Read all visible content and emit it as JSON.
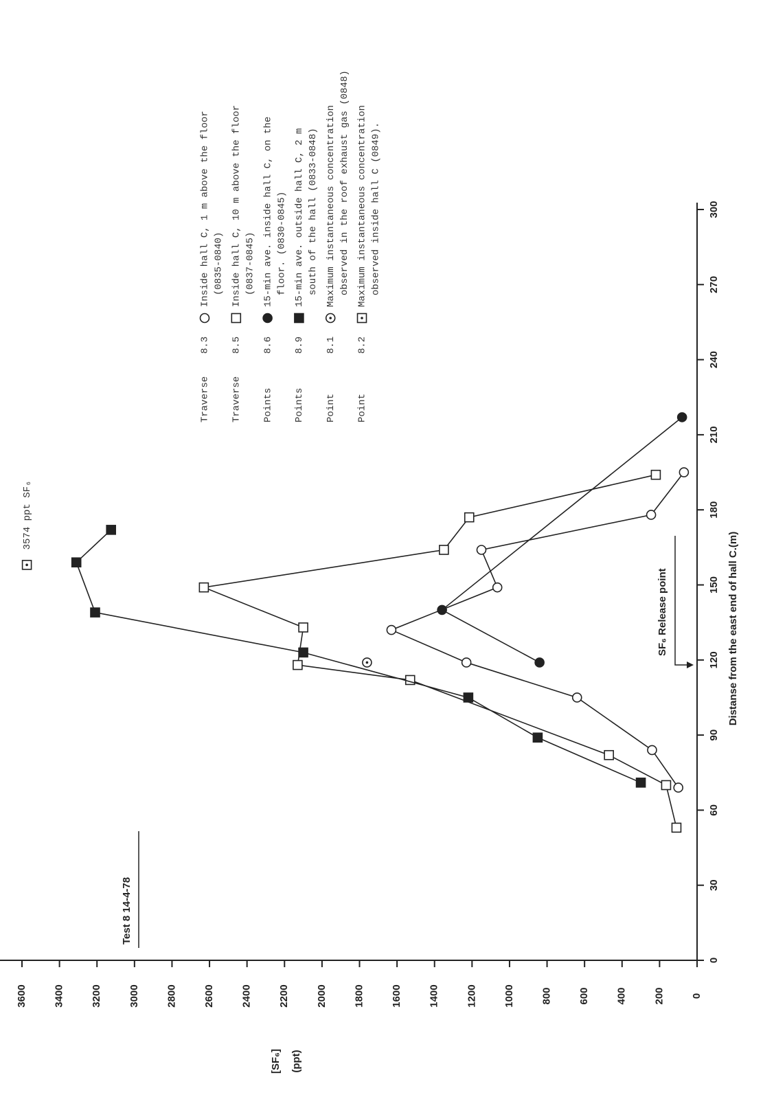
{
  "chart_data": {
    "type": "line",
    "title": "Test 8 14-4-78",
    "x_label": "Distanse from the east end of hall C.(m)",
    "y_label": [
      "[SF₆]",
      "(ppt)"
    ],
    "annotation": "SF₆ Release point",
    "xlim": [
      0,
      300
    ],
    "xticks": [
      0,
      30,
      60,
      90,
      120,
      150,
      180,
      210,
      240,
      270,
      300
    ],
    "ylim": [
      0,
      3600
    ],
    "yticks": [
      0,
      200,
      400,
      600,
      800,
      1000,
      1200,
      1400,
      1600,
      1800,
      2000,
      2200,
      2400,
      2600,
      2800,
      3000,
      3200,
      3400,
      3600
    ],
    "series": [
      {
        "label": "Traverse",
        "name": "8.3",
        "marker": "circle-open",
        "connected": true,
        "color": "#222",
        "description": [
          "Inside hall C, 1 m above the floor",
          "(0835-0840)"
        ],
        "x": [
          69,
          84,
          105,
          119,
          132,
          149,
          164,
          178,
          195
        ],
        "values": [
          100,
          240,
          640,
          1230,
          1630,
          1065,
          1150,
          245,
          70
        ]
      },
      {
        "label": "Traverse",
        "name": "8.5",
        "marker": "square-open",
        "connected": true,
        "color": "#222",
        "description": [
          "Inside hall C, 10 m above the floor",
          "(0837-0845)"
        ],
        "x": [
          53,
          70,
          82,
          112,
          118,
          133,
          149,
          164,
          177,
          194
        ],
        "values": [
          110,
          165,
          470,
          1530,
          2130,
          2100,
          2630,
          1350,
          1215,
          220
        ]
      },
      {
        "label": "Points",
        "name": "8.6",
        "marker": "circle-filled",
        "connected": true,
        "color": "#222",
        "description": [
          "15-min ave. inside hall C, on the",
          "floor. (0830-0845)"
        ],
        "x": [
          119,
          140,
          217
        ],
        "values": [
          840,
          1360,
          80
        ]
      },
      {
        "label": "Points",
        "name": "8.9",
        "marker": "square-filled",
        "connected": true,
        "color": "#222",
        "description": [
          "15-min ave. outside hall C, 2 m",
          "south of the hall (0833-0848)"
        ],
        "x": [
          71,
          89,
          105,
          123,
          139,
          159,
          172
        ],
        "values": [
          300,
          850,
          1220,
          2100,
          3210,
          3310,
          3125
        ]
      },
      {
        "label": "Point",
        "name": "8.1",
        "marker": "circle-dot",
        "connected": false,
        "color": "#222",
        "description": [
          "Maximum instantaneous concentration",
          "observed in the roof exhaust gas (0848)"
        ],
        "x": [
          119
        ],
        "values": [
          1760
        ]
      },
      {
        "label": "Point",
        "name": "8.2",
        "marker": "square-dot",
        "connected": false,
        "color": "#222",
        "description": [
          "Maximum instantaneous concentration",
          "observed inside hall C (0849)."
        ],
        "x": [
          158
        ],
        "values": [
          3574
        ],
        "value_labels": [
          "3574 ppt SF₆"
        ]
      }
    ]
  }
}
